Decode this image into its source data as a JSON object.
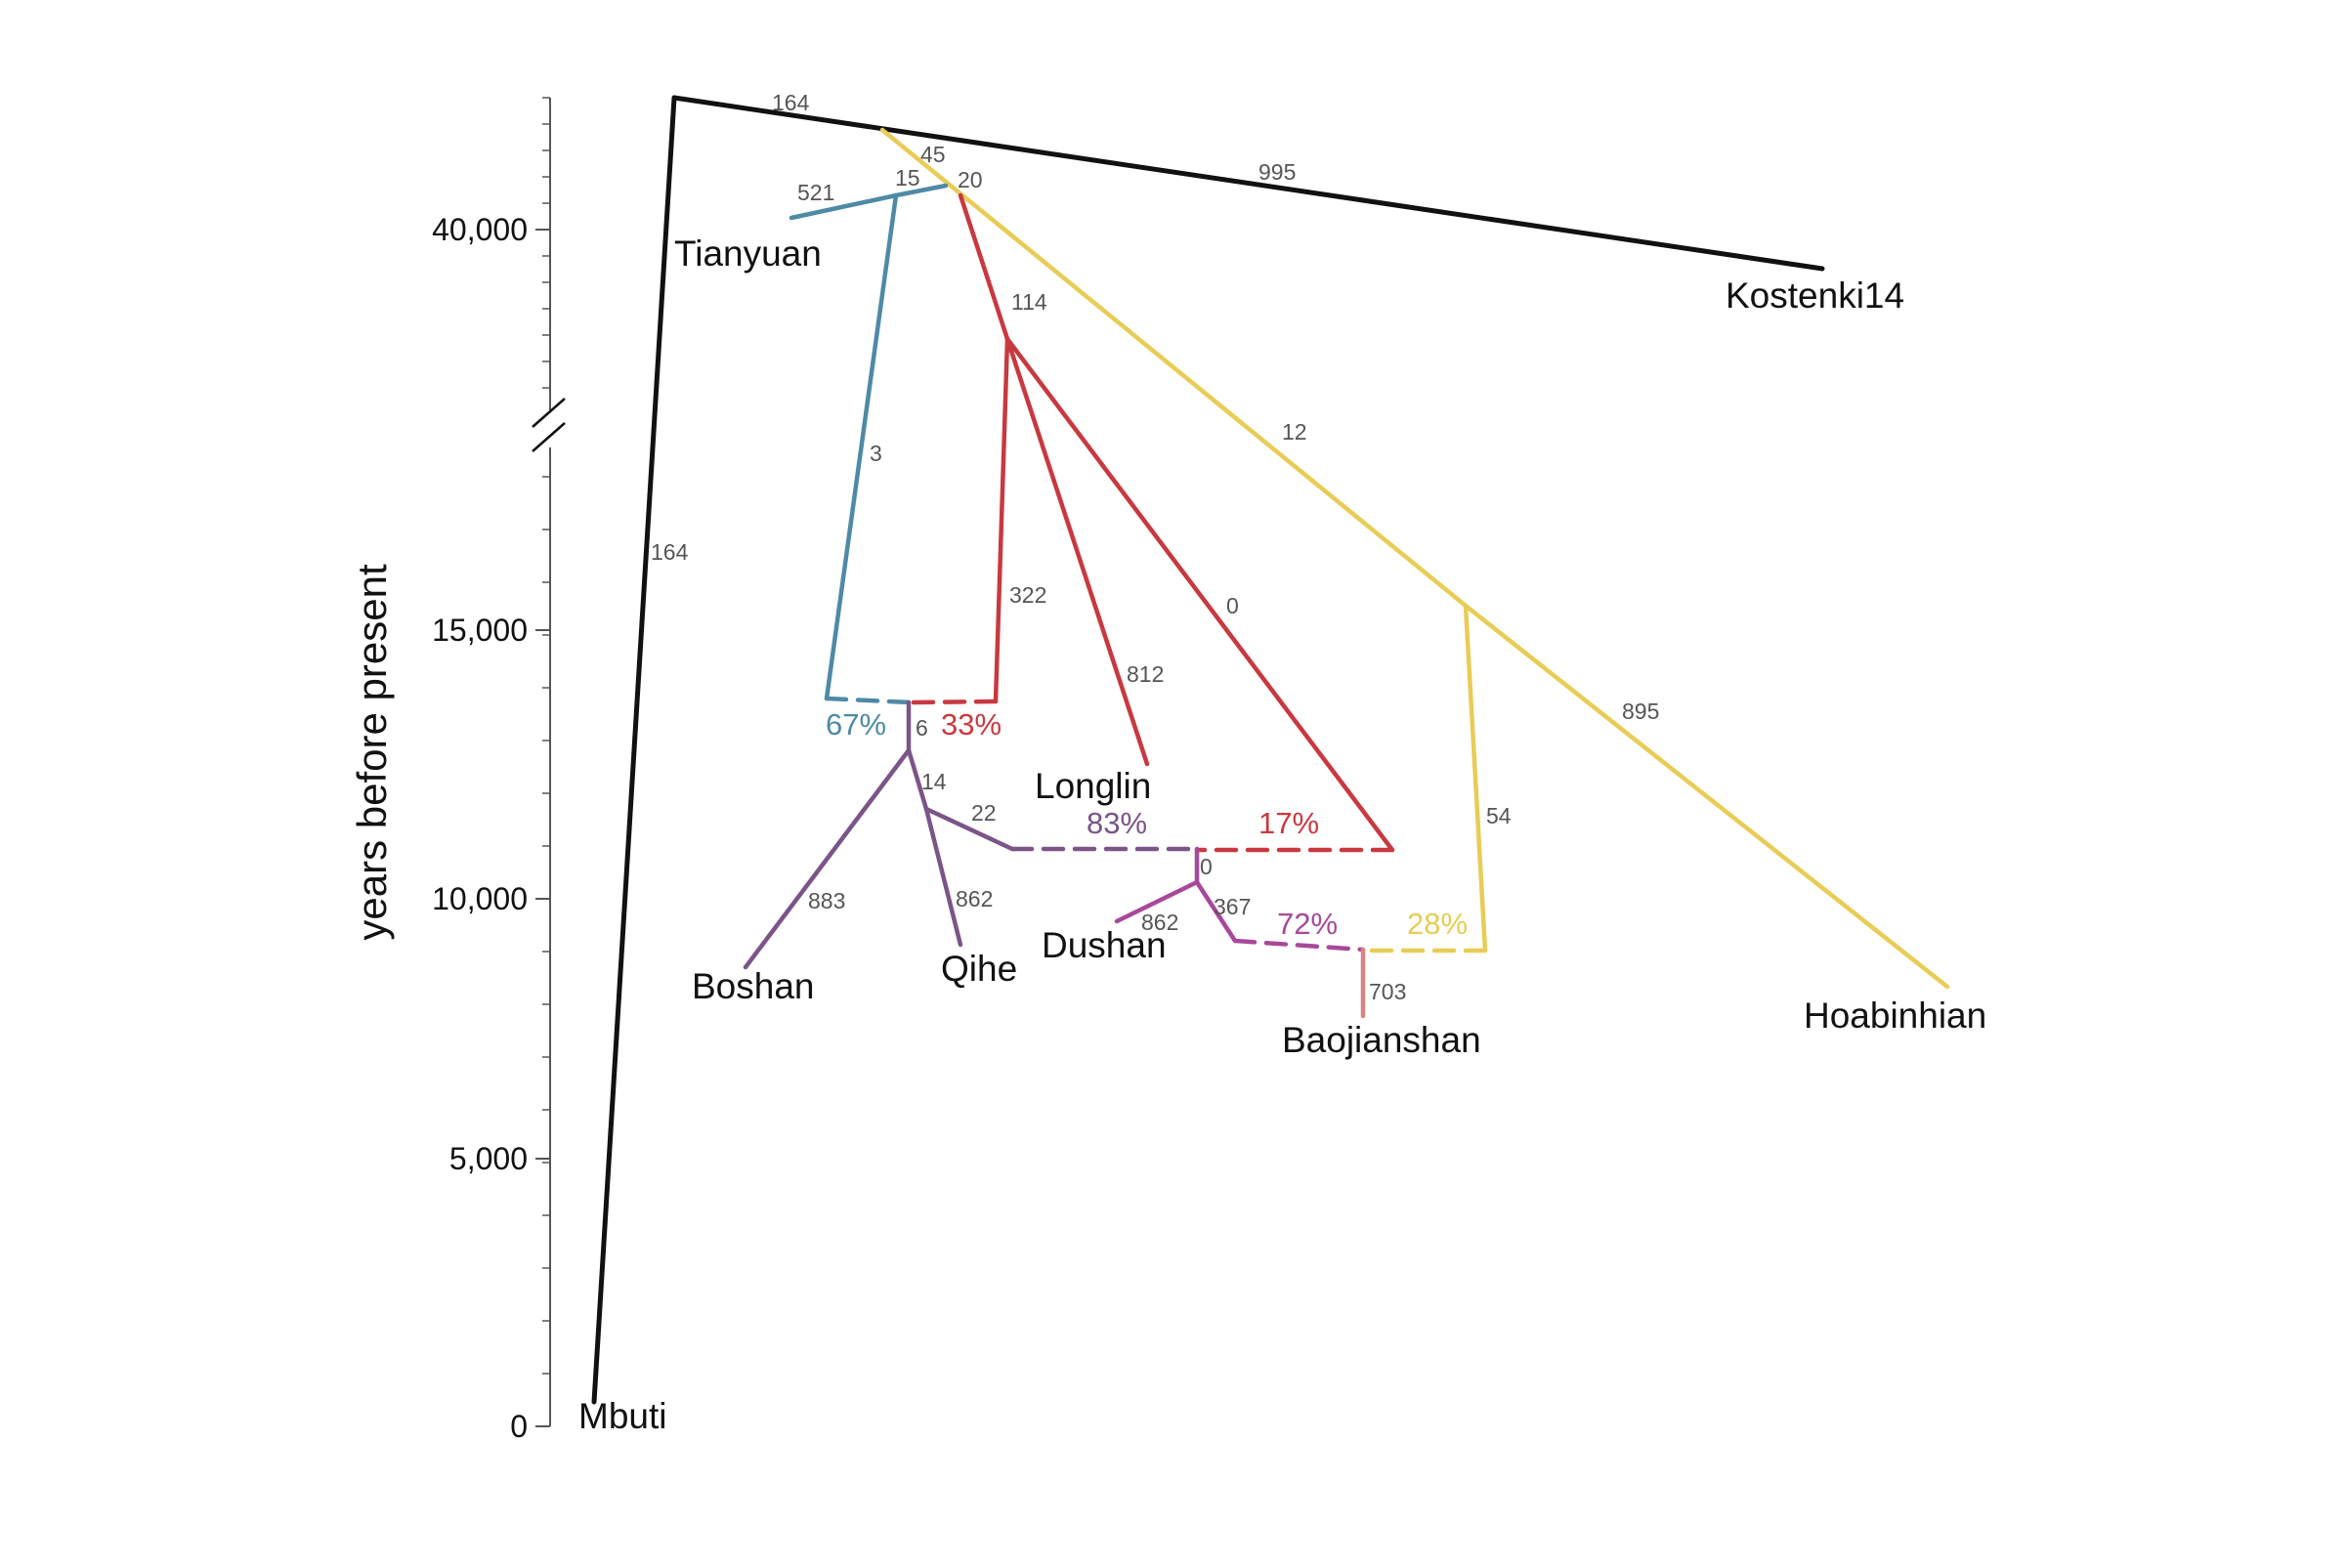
{
  "axis": {
    "title": "years before present",
    "ticks": [
      "40,000",
      "15,000",
      "10,000",
      "5,000",
      "0"
    ]
  },
  "populations": {
    "mbuti": "Mbuti",
    "tianyuan": "Tianyuan",
    "kostenki": "Kostenki14",
    "longlin": "Longlin",
    "boshan": "Boshan",
    "qihe": "Qihe",
    "dushan": "Dushan",
    "baojianshan": "Baojianshan",
    "hoabinhian": "Hoabinhian"
  },
  "drift": {
    "root_top": "164",
    "root_mbuti": "164",
    "kostenki": "995",
    "yellow_top": "45",
    "tianyuan_term": "521",
    "tianyuan_node": "15",
    "red_node": "20",
    "blue_down": "3",
    "red_114": "114",
    "red_322": "322",
    "longlin": "812",
    "red_zero": "0",
    "yellow_12": "12",
    "hoabinhian": "895",
    "yellow_54": "54",
    "purple_6": "6",
    "purple_14": "14",
    "purple_22": "22",
    "boshan": "883",
    "qihe": "862",
    "dushan_node": "0",
    "dushan": "862",
    "magenta_367": "367",
    "baojianshan": "703"
  },
  "admixture": {
    "blue_pct": "67%",
    "red_pct": "33%",
    "purple_pct": "83%",
    "red2_pct": "17%",
    "magenta_pct": "72%",
    "yellow_pct": "28%"
  },
  "colors": {
    "black": "#111111",
    "blue": "#4e8aa6",
    "red": "#c8393f",
    "yellow": "#e8cc55",
    "purple": "#7b5488",
    "magenta": "#a8489a",
    "pink": "#d98484",
    "axis": "#555555"
  }
}
